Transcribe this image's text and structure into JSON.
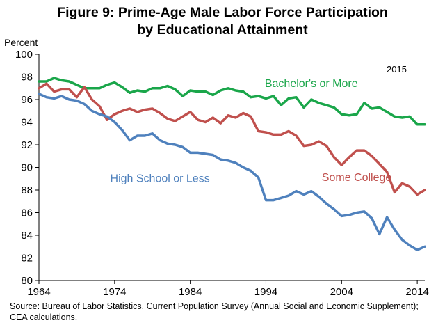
{
  "figure": {
    "title_line1": "Figure 9: Prime-Age Male Labor Force Participation",
    "title_line2": "by Educational Attainment",
    "source": "Source: Bureau of Labor Statistics, Current Population Survey (Annual Social and Economic Supplement); CEA calculations."
  },
  "chart_data": {
    "type": "line",
    "title": "Figure 9: Prime-Age Male Labor Force Participation by Educational Attainment",
    "ylabel": "Percent",
    "xlabel": "",
    "year_note": "2015",
    "xlim": [
      1964,
      2015
    ],
    "ylim": [
      80,
      100
    ],
    "xticks": [
      1964,
      1974,
      1984,
      1994,
      2004,
      2014
    ],
    "yticks": [
      80,
      82,
      84,
      86,
      88,
      90,
      92,
      94,
      96,
      98,
      100
    ],
    "grid": false,
    "x": [
      1964,
      1965,
      1966,
      1967,
      1968,
      1969,
      1970,
      1971,
      1972,
      1973,
      1974,
      1975,
      1976,
      1977,
      1978,
      1979,
      1980,
      1981,
      1982,
      1983,
      1984,
      1985,
      1986,
      1987,
      1988,
      1989,
      1990,
      1991,
      1992,
      1993,
      1994,
      1995,
      1996,
      1997,
      1998,
      1999,
      2000,
      2001,
      2002,
      2003,
      2004,
      2005,
      2006,
      2007,
      2008,
      2009,
      2010,
      2011,
      2012,
      2013,
      2014,
      2015
    ],
    "series": [
      {
        "name": "Bachelor's or More",
        "color": "#1aa64a",
        "values": [
          97.6,
          97.6,
          97.9,
          97.7,
          97.6,
          97.3,
          97.0,
          97.0,
          97.0,
          97.3,
          97.5,
          97.1,
          96.6,
          96.8,
          96.7,
          97.0,
          97.0,
          97.2,
          96.9,
          96.3,
          96.8,
          96.7,
          96.7,
          96.4,
          96.8,
          97.0,
          96.8,
          96.7,
          96.2,
          96.3,
          96.1,
          96.3,
          95.5,
          96.1,
          96.2,
          95.3,
          96.0,
          95.7,
          95.5,
          95.3,
          94.7,
          94.6,
          94.7,
          95.7,
          95.2,
          95.3,
          94.9,
          94.5,
          94.4,
          94.5,
          93.8,
          93.8
        ]
      },
      {
        "name": "Some College",
        "color": "#c0504d",
        "values": [
          97.0,
          97.4,
          96.7,
          96.9,
          96.9,
          96.2,
          97.1,
          96.0,
          95.4,
          94.2,
          94.7,
          95.0,
          95.2,
          94.9,
          95.1,
          95.2,
          94.8,
          94.3,
          94.1,
          94.5,
          94.9,
          94.2,
          94.0,
          94.4,
          93.9,
          94.6,
          94.4,
          94.8,
          94.5,
          93.2,
          93.1,
          92.9,
          92.9,
          93.2,
          92.8,
          91.9,
          92.0,
          92.3,
          91.9,
          90.9,
          90.2,
          90.9,
          91.5,
          91.5,
          91.0,
          90.3,
          89.6,
          87.8,
          88.6,
          88.3,
          87.6,
          88.0
        ]
      },
      {
        "name": "High School or Less",
        "color": "#4f81bd",
        "values": [
          96.5,
          96.2,
          96.1,
          96.3,
          96.0,
          95.9,
          95.6,
          95.0,
          94.7,
          94.5,
          94.0,
          93.3,
          92.4,
          92.8,
          92.8,
          93.0,
          92.4,
          92.1,
          92.0,
          91.8,
          91.3,
          91.3,
          91.2,
          91.1,
          90.7,
          90.6,
          90.4,
          90.0,
          89.7,
          89.1,
          87.1,
          87.1,
          87.3,
          87.5,
          87.9,
          87.6,
          87.9,
          87.4,
          86.8,
          86.3,
          85.7,
          85.8,
          86.0,
          86.1,
          85.5,
          84.1,
          85.6,
          84.5,
          83.6,
          83.1,
          82.7,
          83.0
        ]
      }
    ],
    "annotations": [
      {
        "text": "Bachelor's or More",
        "series": "Bachelor's or More",
        "x": 2000,
        "y": 97.1
      },
      {
        "text": "Some College",
        "series": "Some College",
        "x": 2006,
        "y": 88.8
      },
      {
        "text": "High School or Less",
        "series": "High School or Less",
        "x": 1980,
        "y": 88.7
      }
    ]
  }
}
